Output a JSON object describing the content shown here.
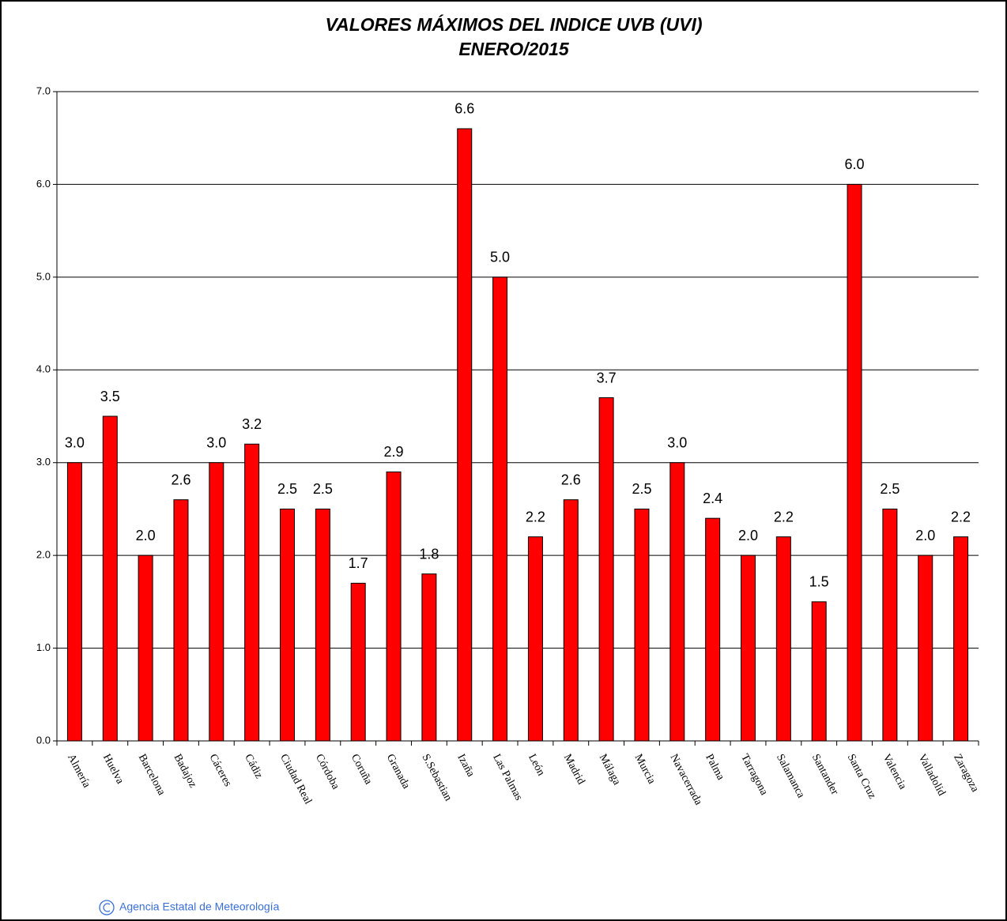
{
  "chart_data": {
    "type": "bar",
    "title": [
      "VALORES MÁXIMOS DEL INDICE UVB (UVI)",
      "ENERO/2015"
    ],
    "categories": [
      "Almería",
      "Huelva",
      "Barcelona",
      "Badajoz",
      "Cáceres",
      "Cádiz",
      "Ciudad Real",
      "Córdoba",
      "Coruña",
      "Granada",
      "S.Sebastian",
      "Izaña",
      "Las Palmas",
      "León",
      "Madrid",
      "Málaga",
      "Murcia",
      "Navacerrada",
      "Palma",
      "Tarragona",
      "Salamanca",
      "Santander",
      "Santa Cruz",
      "Valencia",
      "Valladolid",
      "Zaragoza"
    ],
    "values": [
      3.0,
      3.5,
      2.0,
      2.6,
      3.0,
      3.2,
      2.5,
      2.5,
      1.7,
      2.9,
      1.8,
      6.6,
      5.0,
      2.2,
      2.6,
      3.7,
      2.5,
      3.0,
      2.4,
      2.0,
      2.2,
      1.5,
      6.0,
      2.5,
      2.0,
      2.2
    ],
    "value_labels": [
      "3.0",
      "3.5",
      "2.0",
      "2.6",
      "3.0",
      "3.2",
      "2.5",
      "2.5",
      "1.7",
      "2.9",
      "1.8",
      "6.6",
      "5.0",
      "2.2",
      "2.6",
      "3.7",
      "2.5",
      "3.0",
      "2.4",
      "2.0",
      "2.2",
      "1.5",
      "6.0",
      "2.5",
      "2.0",
      "2.2"
    ],
    "color": "#ff0000",
    "ylim": [
      0,
      7
    ],
    "yticks": [
      {
        "value": 0,
        "label": "0.0"
      },
      {
        "value": 1,
        "label": "1.0"
      },
      {
        "value": 2,
        "label": "2.0"
      },
      {
        "value": 3,
        "label": "3.0"
      },
      {
        "value": 4,
        "label": "4.0"
      },
      {
        "value": 5,
        "label": "5.0"
      },
      {
        "value": 6,
        "label": "6.0"
      },
      {
        "value": 7,
        "label": "7.0"
      }
    ],
    "grid": true,
    "footer": "Agencia Estatal de Meteorología"
  }
}
